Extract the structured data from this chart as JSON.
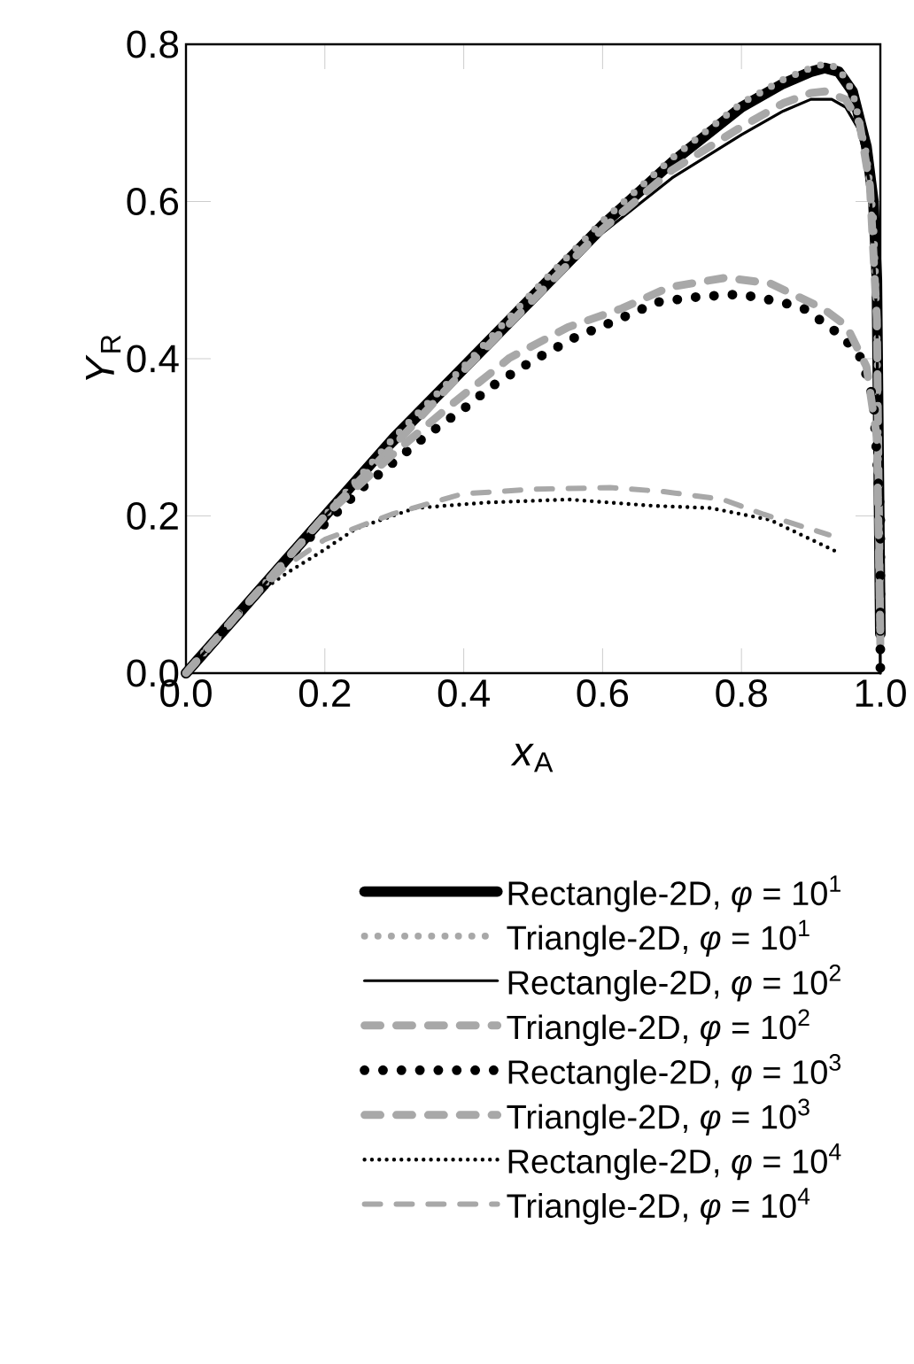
{
  "chart_data": {
    "type": "line",
    "xlabel": "*x*$_{A}$",
    "ylabel": "*Y*$_{R}$",
    "xlim": [
      0,
      1
    ],
    "ylim": [
      0,
      0.8
    ],
    "xticks": [
      {
        "value": 0,
        "label": "0.0"
      },
      0.2,
      0.4,
      0.6,
      0.8,
      {
        "value": 1,
        "label": "1.0"
      }
    ],
    "yticks": [
      {
        "value": 0,
        "label": "0.0"
      },
      0.2,
      0.4,
      0.6,
      0.8
    ],
    "legend": "bottom",
    "grid": false,
    "series": [
      {
        "name": "Rectangle-2D,  *φ* = 10$^{1}$",
        "color": "#000000",
        "line_style": "solid",
        "x": [
          0,
          0.05,
          0.1,
          0.2,
          0.3,
          0.4,
          0.5,
          0.6,
          0.7,
          0.8,
          0.86,
          0.9,
          0.92,
          0.94,
          0.96,
          0.98,
          0.99,
          0.995,
          1.0
        ],
        "values": [
          0,
          0.05,
          0.1,
          0.2,
          0.3,
          0.39,
          0.48,
          0.57,
          0.65,
          0.72,
          0.75,
          0.765,
          0.77,
          0.765,
          0.74,
          0.67,
          0.6,
          0.5,
          0.05
        ]
      },
      {
        "name": "Triangle-2D,    *φ* = 10$^{1}$",
        "color": "#a8a8a8",
        "line_style": "dotted",
        "x": [
          0,
          0.05,
          0.1,
          0.2,
          0.3,
          0.4,
          0.5,
          0.6,
          0.7,
          0.8,
          0.86,
          0.9,
          0.92,
          0.94,
          0.96,
          0.98,
          0.99,
          0.995,
          1.0
        ],
        "values": [
          0,
          0.05,
          0.1,
          0.2,
          0.3,
          0.39,
          0.485,
          0.575,
          0.655,
          0.725,
          0.755,
          0.77,
          0.775,
          0.77,
          0.74,
          0.66,
          0.58,
          0.45,
          0.03
        ]
      },
      {
        "name": "Rectangle-2D,  *φ* = 10$^{2}$",
        "color": "#000000",
        "line_style": "solid",
        "x": [
          0,
          0.05,
          0.1,
          0.2,
          0.3,
          0.4,
          0.5,
          0.6,
          0.7,
          0.8,
          0.86,
          0.9,
          0.93,
          0.95,
          0.97,
          0.985,
          0.995,
          1.0
        ],
        "values": [
          0,
          0.05,
          0.1,
          0.2,
          0.29,
          0.38,
          0.47,
          0.56,
          0.63,
          0.685,
          0.715,
          0.73,
          0.73,
          0.72,
          0.69,
          0.62,
          0.45,
          0.0
        ]
      },
      {
        "name": "Triangle-2D,    *φ* = 10$^{2}$",
        "color": "#a8a8a8",
        "line_style": "dashed",
        "x": [
          0,
          0.05,
          0.1,
          0.2,
          0.3,
          0.4,
          0.5,
          0.6,
          0.7,
          0.8,
          0.86,
          0.9,
          0.92,
          0.95,
          0.97,
          0.985,
          0.995,
          1.0
        ],
        "values": [
          0,
          0.05,
          0.1,
          0.2,
          0.29,
          0.385,
          0.475,
          0.565,
          0.64,
          0.695,
          0.725,
          0.738,
          0.74,
          0.73,
          0.7,
          0.62,
          0.45,
          0.03
        ]
      },
      {
        "name": "Rectangle-2D,  *φ* = 10$^{3}$",
        "color": "#000000",
        "line_style": "dotted",
        "x": [
          0,
          0.05,
          0.1,
          0.15,
          0.2,
          0.254,
          0.347,
          0.407,
          0.437,
          0.498,
          0.56,
          0.62,
          0.679,
          0.739,
          0.798,
          0.858,
          0.892,
          0.947,
          0.973,
          0.99,
          1.0,
          1.0
        ],
        "values": [
          0,
          0.05,
          0.1,
          0.15,
          0.19,
          0.236,
          0.303,
          0.341,
          0.363,
          0.397,
          0.427,
          0.449,
          0.472,
          0.479,
          0.482,
          0.472,
          0.463,
          0.427,
          0.4,
          0.348,
          0.2,
          0.0
        ]
      },
      {
        "name": "Triangle-2D,    *φ* = 10$^{3}$",
        "color": "#a8a8a8",
        "line_style": "dashed",
        "x": [
          0,
          0.05,
          0.1,
          0.2,
          0.3,
          0.38,
          0.466,
          0.55,
          0.628,
          0.696,
          0.777,
          0.841,
          0.917,
          0.951,
          0.98,
          0.995,
          1.0
        ],
        "values": [
          0,
          0.05,
          0.1,
          0.2,
          0.28,
          0.34,
          0.401,
          0.44,
          0.464,
          0.491,
          0.503,
          0.496,
          0.464,
          0.442,
          0.39,
          0.3,
          0.05
        ]
      },
      {
        "name": "Rectangle-2D,  *φ* = 10$^{4}$",
        "color": "#000000",
        "line_style": "dotted",
        "x": [
          0,
          0.05,
          0.1,
          0.15,
          0.194,
          0.245,
          0.33,
          0.432,
          0.551,
          0.671,
          0.756,
          0.841,
          0.943
        ],
        "values": [
          0,
          0.05,
          0.1,
          0.13,
          0.154,
          0.184,
          0.21,
          0.217,
          0.221,
          0.213,
          0.21,
          0.195,
          0.152
        ]
      },
      {
        "name": "Triangle-2D,    *φ* = 10$^{4}$",
        "color": "#a8a8a8",
        "line_style": "dashed",
        "x": [
          0,
          0.05,
          0.1,
          0.15,
          0.2,
          0.296,
          0.398,
          0.5,
          0.611,
          0.688,
          0.773,
          0.832,
          0.926
        ],
        "values": [
          0,
          0.05,
          0.1,
          0.14,
          0.17,
          0.202,
          0.228,
          0.234,
          0.236,
          0.231,
          0.221,
          0.202,
          0.176
        ]
      }
    ]
  }
}
